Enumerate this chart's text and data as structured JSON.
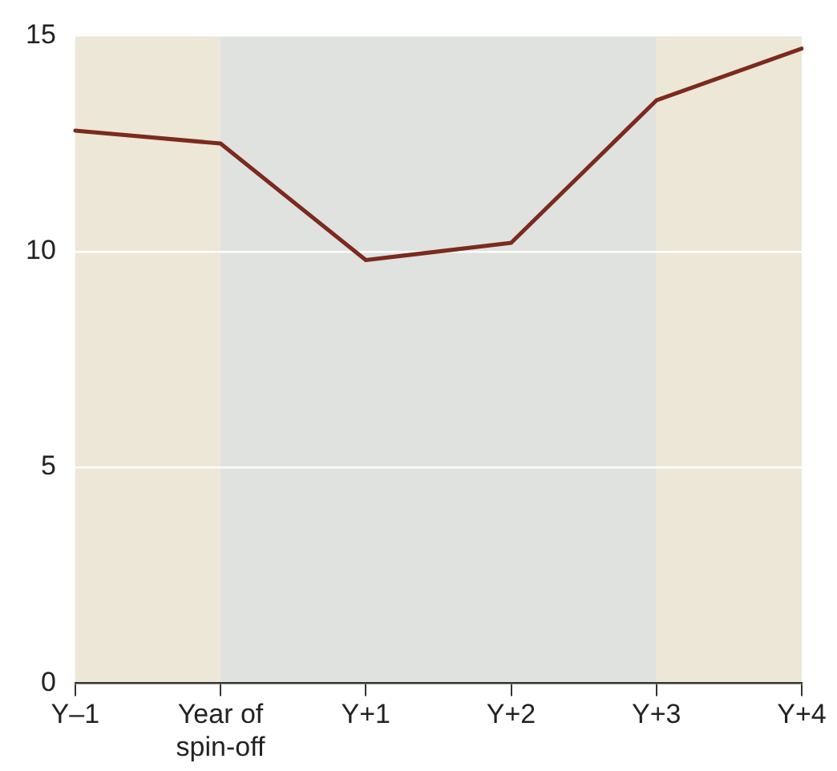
{
  "chart_data": {
    "type": "line",
    "categories": [
      "Y–1",
      "Year of spin-off",
      "Y+1",
      "Y+2",
      "Y+3",
      "Y+4"
    ],
    "series": [
      {
        "color": "#7b2a1f",
        "values": [
          12.8,
          12.5,
          9.8,
          10.2,
          13.5,
          14.7
        ]
      }
    ],
    "ylim": [
      0,
      15
    ],
    "yticks": [
      0,
      5,
      10,
      15
    ],
    "grid": "y",
    "legend": false,
    "marker": "none",
    "line_style": "solid",
    "bands": [
      {
        "axis": "x",
        "from": "Y–1",
        "to": "Year of spin-off",
        "color": "#ece7d6"
      },
      {
        "axis": "x",
        "from": "Year of spin-off",
        "to": "Y+3",
        "color": "#dfe2df"
      },
      {
        "axis": "x",
        "from": "Y+3",
        "to": "Y+4",
        "color": "#ece7d6"
      }
    ]
  }
}
